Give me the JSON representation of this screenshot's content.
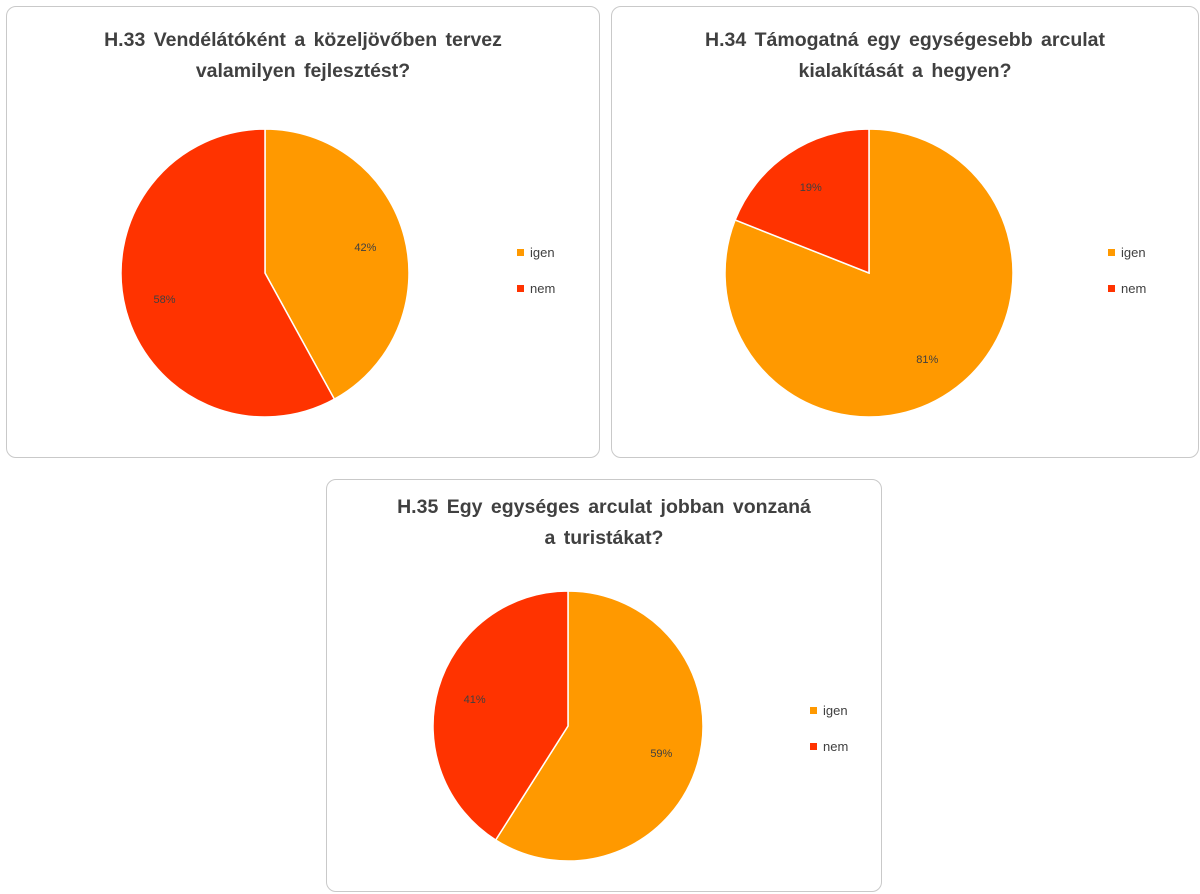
{
  "chart_data": [
    {
      "type": "pie",
      "title": "H.33 Vendélátóként a közeljövőben tervez\nvalamilyen fejlesztést?",
      "categories": [
        "igen",
        "nem"
      ],
      "values": [
        42,
        58
      ],
      "labels": [
        "42%",
        "58%"
      ],
      "colors": [
        "#FF9900",
        "#FF3300"
      ],
      "legend_position": "right"
    },
    {
      "type": "pie",
      "title": "H.34 Támogatná egy egységesebb arculat\nkialakítását a hegyen?",
      "categories": [
        "igen",
        "nem"
      ],
      "values": [
        81,
        19
      ],
      "labels": [
        "81%",
        "19%"
      ],
      "colors": [
        "#FF9900",
        "#FF3300"
      ],
      "legend_position": "right"
    },
    {
      "type": "pie",
      "title": "H.35 Egy egységes arculat jobban vonzaná\na turistákat?",
      "categories": [
        "igen",
        "nem"
      ],
      "values": [
        59,
        41
      ],
      "labels": [
        "59%",
        "41%"
      ],
      "colors": [
        "#FF9900",
        "#FF3300"
      ],
      "legend_position": "right"
    }
  ]
}
